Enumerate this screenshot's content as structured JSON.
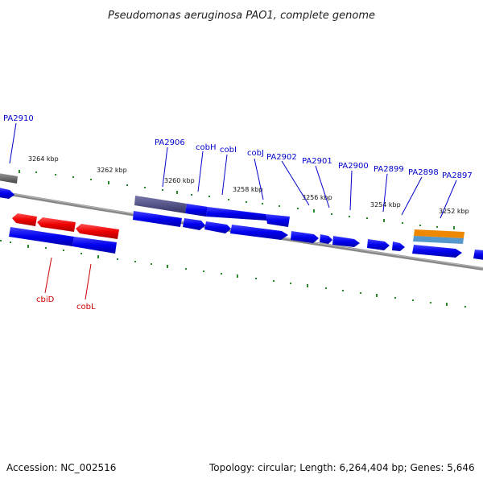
{
  "title": "Pseudomonas aeruginosa PAO1, complete genome",
  "footer": {
    "accession": "Accession: NC_002516",
    "summary": "Topology: circular; Length: 6,264,404 bp; Genes: 5,646"
  },
  "colors": {
    "forward_gene": "#0000ee",
    "reverse_gene": "#ee0000",
    "tick": "#2a8a2a",
    "backbone": "#888888",
    "forward_label": "#0000cc",
    "reverse_label": "#cc0000",
    "rrna_orange": "#ee8800",
    "rrna_blue": "#4488cc",
    "dark_gene": "#555577"
  },
  "scale": {
    "unit": "kbp",
    "labels": [
      "3264 kbp",
      "3262 kbp",
      "3260 kbp",
      "3258 kbp",
      "3256 kbp",
      "3254 kbp",
      "3252 kbp"
    ]
  },
  "gene_labels_forward": [
    "PA2910",
    "PA2906",
    "cobH",
    "cobI",
    "cobJ",
    "PA2902",
    "PA2901",
    "PA2900",
    "PA2899",
    "PA2898",
    "PA2897"
  ],
  "gene_labels_reverse": [
    "cbiD",
    "cobL"
  ]
}
